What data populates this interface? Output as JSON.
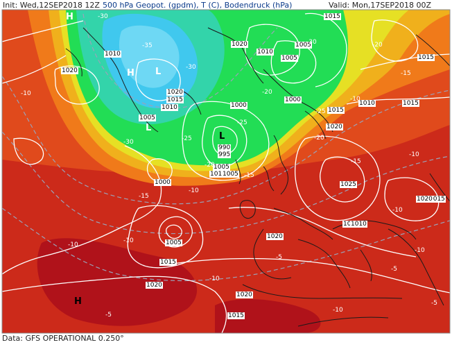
{
  "header": {
    "init_label": "Init:",
    "init_value": "Wed,12SEP2018 12Z",
    "title": "500 hPa Geopot. (gpdm), T (C), Bodendruck (hPa)",
    "valid_label": "Valid:",
    "valid_value": "Mon,17SEP2018 00Z"
  },
  "footer": {
    "data_source": "Data: GFS OPERATIONAL 0.250°"
  },
  "pressure_labels": [
    "1015",
    "1020",
    "1010",
    "1020",
    "1005",
    "1010",
    "1005",
    "1020",
    "1015",
    "1010",
    "1005",
    "1000",
    "1015",
    "1010",
    "1000",
    "990",
    "995",
    "1005",
    "1010",
    "1005",
    "1000",
    "1015",
    "1020",
    "1015",
    "1020",
    "1015",
    "1025",
    "1010",
    "1020",
    "1020",
    "1005",
    "1015",
    "1020",
    "1015",
    "1020"
  ],
  "temperature_labels": [
    "-30",
    "-35",
    "-30",
    "-30",
    "-10",
    "-20",
    "-25",
    "-25",
    "-30",
    "-25",
    "-20",
    "-20",
    "-20",
    "-15",
    "-10",
    "-15",
    "-15",
    "-15",
    "-10",
    "-10",
    "-10",
    "-10",
    "-5",
    "-10",
    "-5",
    "-10",
    "-5",
    "-10",
    "-5",
    "-10"
  ],
  "pressure_systems": [
    {
      "symbol": "H",
      "type": "high"
    },
    {
      "symbol": "H",
      "type": "high"
    },
    {
      "symbol": "L",
      "type": "low"
    },
    {
      "symbol": "L",
      "type": "low"
    },
    {
      "symbol": "L",
      "type": "low"
    },
    {
      "symbol": "H",
      "type": "high"
    }
  ],
  "colors": {
    "green": "#22dd55",
    "cyan": "#33ccee",
    "yellow": "#e8e020",
    "orange": "#ee8a1a",
    "red_orange": "#d8401a",
    "red": "#c81a1a",
    "contour": "#ffffff",
    "coastline": "#1a1a1a"
  }
}
